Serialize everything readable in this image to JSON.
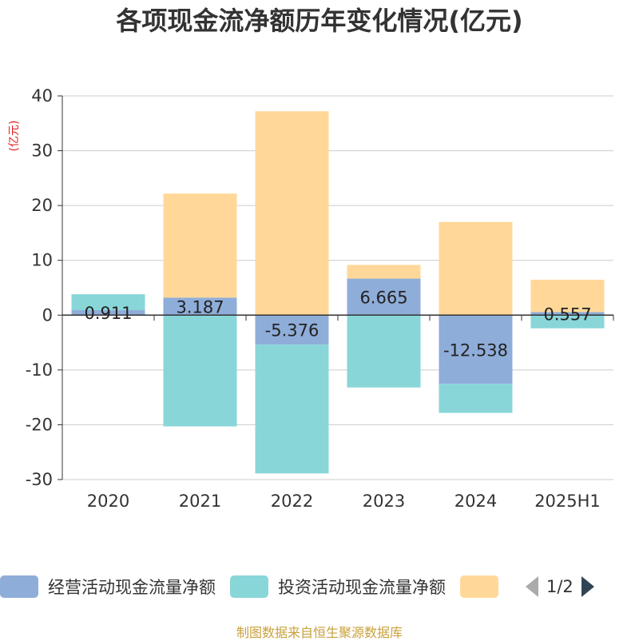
{
  "title": "各项现金流净额历年变化情况(亿元)",
  "unit_label": "(亿元)",
  "legend": {
    "items": [
      {
        "label": "经营活动现金流量净额",
        "color": "#8fadd9"
      },
      {
        "label": "投资活动现金流量净额",
        "color": "#88d6d8"
      },
      {
        "label": "",
        "color": "#ffd899"
      }
    ],
    "page": "1/2"
  },
  "source_note": "制图数据来自恒生聚源数据库",
  "chart_data": {
    "type": "bar",
    "stacked": true,
    "title": "各项现金流净额历年变化情况(亿元)",
    "ylabel": "(亿元)",
    "ylim": [
      -30,
      40
    ],
    "yticks": [
      -30,
      -20,
      -10,
      0,
      10,
      20,
      30,
      40
    ],
    "grid": true,
    "legend_position": "bottom",
    "categories": [
      "2020",
      "2021",
      "2022",
      "2023",
      "2024",
      "2025H1"
    ],
    "series": [
      {
        "name": "经营活动现金流量净额",
        "color": "#8fadd9",
        "values": [
          0.911,
          3.187,
          -5.376,
          6.665,
          -12.538,
          0.557
        ],
        "labels": [
          "0.911",
          "3.187",
          "-5.376",
          "6.665",
          "-12.538",
          "0.557"
        ]
      },
      {
        "name": "投资活动现金流量净额",
        "color": "#88d6d8",
        "values": [
          2.9,
          -20.3,
          -23.5,
          -13.2,
          -5.3,
          -2.4
        ]
      },
      {
        "color": "#ffd899",
        "values": [
          0.0,
          19.0,
          37.2,
          2.5,
          17.0,
          5.9
        ]
      }
    ]
  }
}
